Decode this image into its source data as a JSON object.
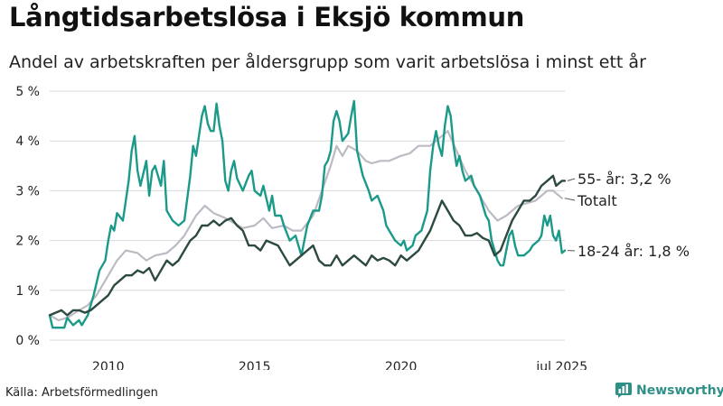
{
  "title": "Långtidsarbetslösa i Eksjö kommun",
  "subtitle": "Andel av arbetskraften per åldersgrupp som varit arbetslösa i minst ett år",
  "source": "Källa: Arbetsförmedlingen",
  "brand": {
    "name": "Newsworthy",
    "icon": "newsworthy-chart-icon"
  },
  "colors": {
    "youth": "#1b9a8a",
    "total": "#bdbac4",
    "senior": "#2d4a40",
    "grid": "#d9d9d9",
    "text": "#222222"
  },
  "chart_data": {
    "type": "line",
    "title": "",
    "xlabel": "",
    "ylabel": "",
    "x_range": [
      2008.0,
      2025.6
    ],
    "ylim": [
      0,
      5
    ],
    "y_ticks": [
      {
        "value": 0,
        "label": "0 %"
      },
      {
        "value": 1,
        "label": "1 %"
      },
      {
        "value": 2,
        "label": "2 %"
      },
      {
        "value": 3,
        "label": "3 %"
      },
      {
        "value": 4,
        "label": "4 %"
      },
      {
        "value": 5,
        "label": "5 %"
      }
    ],
    "x_ticks": [
      {
        "value": 2010,
        "label": "2010"
      },
      {
        "value": 2015,
        "label": "2015"
      },
      {
        "value": 2020,
        "label": "2020"
      },
      {
        "value": 2025.5,
        "label": "jul 2025"
      }
    ],
    "grid": true,
    "series": [
      {
        "key": "total",
        "name": "Totalt",
        "label": "Totalt",
        "points": [
          [
            2008.0,
            0.5
          ],
          [
            2008.3,
            0.4
          ],
          [
            2008.6,
            0.45
          ],
          [
            2009.0,
            0.6
          ],
          [
            2009.3,
            0.7
          ],
          [
            2009.6,
            0.9
          ],
          [
            2009.8,
            1.1
          ],
          [
            2010.0,
            1.3
          ],
          [
            2010.3,
            1.6
          ],
          [
            2010.6,
            1.8
          ],
          [
            2011.0,
            1.75
          ],
          [
            2011.3,
            1.6
          ],
          [
            2011.6,
            1.7
          ],
          [
            2012.0,
            1.75
          ],
          [
            2012.3,
            1.9
          ],
          [
            2012.6,
            2.1
          ],
          [
            2013.0,
            2.5
          ],
          [
            2013.3,
            2.7
          ],
          [
            2013.6,
            2.55
          ],
          [
            2014.0,
            2.45
          ],
          [
            2014.3,
            2.35
          ],
          [
            2014.6,
            2.25
          ],
          [
            2015.0,
            2.3
          ],
          [
            2015.3,
            2.45
          ],
          [
            2015.6,
            2.25
          ],
          [
            2016.0,
            2.3
          ],
          [
            2016.3,
            2.2
          ],
          [
            2016.6,
            2.2
          ],
          [
            2017.0,
            2.5
          ],
          [
            2017.3,
            3.0
          ],
          [
            2017.6,
            3.5
          ],
          [
            2017.8,
            3.9
          ],
          [
            2018.0,
            3.7
          ],
          [
            2018.2,
            3.9
          ],
          [
            2018.5,
            3.8
          ],
          [
            2018.8,
            3.6
          ],
          [
            2019.0,
            3.55
          ],
          [
            2019.3,
            3.6
          ],
          [
            2019.6,
            3.6
          ],
          [
            2020.0,
            3.7
          ],
          [
            2020.3,
            3.75
          ],
          [
            2020.6,
            3.9
          ],
          [
            2021.0,
            3.9
          ],
          [
            2021.3,
            4.05
          ],
          [
            2021.6,
            4.2
          ],
          [
            2021.9,
            3.8
          ],
          [
            2022.2,
            3.4
          ],
          [
            2022.5,
            3.1
          ],
          [
            2022.8,
            2.8
          ],
          [
            2023.0,
            2.6
          ],
          [
            2023.3,
            2.4
          ],
          [
            2023.6,
            2.5
          ],
          [
            2024.0,
            2.7
          ],
          [
            2024.3,
            2.75
          ],
          [
            2024.6,
            2.8
          ],
          [
            2025.0,
            3.0
          ],
          [
            2025.2,
            3.0
          ],
          [
            2025.5,
            2.85
          ]
        ]
      },
      {
        "key": "youth",
        "name": "18-24 år",
        "label": "18-24 år: 1,8 %",
        "points": [
          [
            2008.0,
            0.5
          ],
          [
            2008.1,
            0.25
          ],
          [
            2008.5,
            0.25
          ],
          [
            2008.6,
            0.45
          ],
          [
            2008.8,
            0.3
          ],
          [
            2009.0,
            0.4
          ],
          [
            2009.1,
            0.3
          ],
          [
            2009.3,
            0.5
          ],
          [
            2009.5,
            0.9
          ],
          [
            2009.7,
            1.4
          ],
          [
            2009.9,
            1.6
          ],
          [
            2010.0,
            2.0
          ],
          [
            2010.1,
            2.3
          ],
          [
            2010.2,
            2.2
          ],
          [
            2010.3,
            2.55
          ],
          [
            2010.5,
            2.4
          ],
          [
            2010.7,
            3.2
          ],
          [
            2010.8,
            3.8
          ],
          [
            2010.9,
            4.1
          ],
          [
            2011.0,
            3.4
          ],
          [
            2011.1,
            3.1
          ],
          [
            2011.3,
            3.6
          ],
          [
            2011.4,
            2.9
          ],
          [
            2011.5,
            3.4
          ],
          [
            2011.6,
            3.5
          ],
          [
            2011.8,
            3.1
          ],
          [
            2011.9,
            3.6
          ],
          [
            2012.0,
            2.6
          ],
          [
            2012.2,
            2.4
          ],
          [
            2012.4,
            2.3
          ],
          [
            2012.6,
            2.4
          ],
          [
            2012.8,
            3.3
          ],
          [
            2012.9,
            3.9
          ],
          [
            2013.0,
            3.7
          ],
          [
            2013.2,
            4.5
          ],
          [
            2013.3,
            4.7
          ],
          [
            2013.4,
            4.35
          ],
          [
            2013.5,
            4.2
          ],
          [
            2013.6,
            4.2
          ],
          [
            2013.7,
            4.75
          ],
          [
            2013.8,
            4.3
          ],
          [
            2013.9,
            4.0
          ],
          [
            2014.0,
            3.2
          ],
          [
            2014.1,
            3.0
          ],
          [
            2014.2,
            3.4
          ],
          [
            2014.3,
            3.6
          ],
          [
            2014.4,
            3.25
          ],
          [
            2014.6,
            3.0
          ],
          [
            2014.8,
            3.3
          ],
          [
            2014.9,
            3.4
          ],
          [
            2015.0,
            3.0
          ],
          [
            2015.2,
            2.9
          ],
          [
            2015.3,
            3.1
          ],
          [
            2015.5,
            2.6
          ],
          [
            2015.6,
            2.9
          ],
          [
            2015.7,
            2.5
          ],
          [
            2015.9,
            2.5
          ],
          [
            2016.0,
            2.3
          ],
          [
            2016.2,
            2.0
          ],
          [
            2016.4,
            2.1
          ],
          [
            2016.6,
            1.7
          ],
          [
            2016.8,
            2.3
          ],
          [
            2017.0,
            2.6
          ],
          [
            2017.2,
            2.6
          ],
          [
            2017.3,
            2.9
          ],
          [
            2017.4,
            3.5
          ],
          [
            2017.5,
            3.6
          ],
          [
            2017.6,
            3.8
          ],
          [
            2017.7,
            4.4
          ],
          [
            2017.8,
            4.6
          ],
          [
            2017.9,
            4.4
          ],
          [
            2018.0,
            4.0
          ],
          [
            2018.2,
            4.15
          ],
          [
            2018.3,
            4.5
          ],
          [
            2018.4,
            4.8
          ],
          [
            2018.5,
            3.8
          ],
          [
            2018.7,
            3.3
          ],
          [
            2018.9,
            3.0
          ],
          [
            2019.0,
            2.8
          ],
          [
            2019.2,
            2.9
          ],
          [
            2019.4,
            2.6
          ],
          [
            2019.5,
            2.3
          ],
          [
            2019.6,
            2.2
          ],
          [
            2019.8,
            2.0
          ],
          [
            2020.0,
            1.9
          ],
          [
            2020.1,
            2.0
          ],
          [
            2020.2,
            1.8
          ],
          [
            2020.4,
            1.9
          ],
          [
            2020.5,
            2.1
          ],
          [
            2020.7,
            2.2
          ],
          [
            2020.9,
            2.6
          ],
          [
            2021.0,
            3.4
          ],
          [
            2021.1,
            3.9
          ],
          [
            2021.2,
            4.2
          ],
          [
            2021.3,
            3.9
          ],
          [
            2021.4,
            3.7
          ],
          [
            2021.5,
            4.3
          ],
          [
            2021.6,
            4.7
          ],
          [
            2021.7,
            4.5
          ],
          [
            2021.8,
            3.9
          ],
          [
            2021.9,
            3.5
          ],
          [
            2022.0,
            3.7
          ],
          [
            2022.1,
            3.4
          ],
          [
            2022.2,
            3.2
          ],
          [
            2022.4,
            3.3
          ],
          [
            2022.5,
            3.1
          ],
          [
            2022.7,
            2.9
          ],
          [
            2022.8,
            2.7
          ],
          [
            2022.9,
            2.5
          ],
          [
            2023.0,
            2.4
          ],
          [
            2023.1,
            2.0
          ],
          [
            2023.2,
            1.8
          ],
          [
            2023.3,
            1.6
          ],
          [
            2023.4,
            1.5
          ],
          [
            2023.5,
            1.5
          ],
          [
            2023.6,
            1.8
          ],
          [
            2023.7,
            2.1
          ],
          [
            2023.8,
            2.2
          ],
          [
            2023.9,
            1.9
          ],
          [
            2024.0,
            1.7
          ],
          [
            2024.2,
            1.7
          ],
          [
            2024.4,
            1.8
          ],
          [
            2024.5,
            1.9
          ],
          [
            2024.7,
            2.0
          ],
          [
            2024.8,
            2.1
          ],
          [
            2024.9,
            2.5
          ],
          [
            2025.0,
            2.3
          ],
          [
            2025.1,
            2.5
          ],
          [
            2025.2,
            2.1
          ],
          [
            2025.3,
            2.0
          ],
          [
            2025.4,
            2.2
          ],
          [
            2025.5,
            1.75
          ],
          [
            2025.6,
            1.8
          ]
        ]
      },
      {
        "key": "senior",
        "name": "55- år",
        "label": "55- år: 3,2 %",
        "points": [
          [
            2008.0,
            0.5
          ],
          [
            2008.2,
            0.55
          ],
          [
            2008.4,
            0.6
          ],
          [
            2008.6,
            0.5
          ],
          [
            2008.8,
            0.6
          ],
          [
            2009.0,
            0.6
          ],
          [
            2009.2,
            0.55
          ],
          [
            2009.4,
            0.6
          ],
          [
            2009.6,
            0.7
          ],
          [
            2009.8,
            0.8
          ],
          [
            2010.0,
            0.9
          ],
          [
            2010.2,
            1.1
          ],
          [
            2010.4,
            1.2
          ],
          [
            2010.6,
            1.3
          ],
          [
            2010.8,
            1.3
          ],
          [
            2011.0,
            1.4
          ],
          [
            2011.2,
            1.35
          ],
          [
            2011.4,
            1.45
          ],
          [
            2011.6,
            1.2
          ],
          [
            2011.8,
            1.4
          ],
          [
            2012.0,
            1.6
          ],
          [
            2012.2,
            1.5
          ],
          [
            2012.4,
            1.6
          ],
          [
            2012.6,
            1.8
          ],
          [
            2012.8,
            2.0
          ],
          [
            2013.0,
            2.1
          ],
          [
            2013.2,
            2.3
          ],
          [
            2013.4,
            2.3
          ],
          [
            2013.6,
            2.4
          ],
          [
            2013.8,
            2.3
          ],
          [
            2014.0,
            2.4
          ],
          [
            2014.2,
            2.45
          ],
          [
            2014.4,
            2.3
          ],
          [
            2014.6,
            2.2
          ],
          [
            2014.8,
            1.9
          ],
          [
            2015.0,
            1.9
          ],
          [
            2015.2,
            1.8
          ],
          [
            2015.4,
            2.0
          ],
          [
            2015.6,
            1.95
          ],
          [
            2015.8,
            1.9
          ],
          [
            2016.0,
            1.7
          ],
          [
            2016.2,
            1.5
          ],
          [
            2016.4,
            1.6
          ],
          [
            2016.6,
            1.7
          ],
          [
            2016.8,
            1.8
          ],
          [
            2017.0,
            1.9
          ],
          [
            2017.2,
            1.6
          ],
          [
            2017.4,
            1.5
          ],
          [
            2017.6,
            1.5
          ],
          [
            2017.8,
            1.7
          ],
          [
            2018.0,
            1.5
          ],
          [
            2018.2,
            1.6
          ],
          [
            2018.4,
            1.7
          ],
          [
            2018.6,
            1.6
          ],
          [
            2018.8,
            1.5
          ],
          [
            2019.0,
            1.7
          ],
          [
            2019.2,
            1.6
          ],
          [
            2019.4,
            1.65
          ],
          [
            2019.6,
            1.6
          ],
          [
            2019.8,
            1.5
          ],
          [
            2020.0,
            1.7
          ],
          [
            2020.2,
            1.6
          ],
          [
            2020.4,
            1.7
          ],
          [
            2020.6,
            1.8
          ],
          [
            2020.8,
            2.0
          ],
          [
            2021.0,
            2.2
          ],
          [
            2021.2,
            2.5
          ],
          [
            2021.4,
            2.8
          ],
          [
            2021.6,
            2.6
          ],
          [
            2021.8,
            2.4
          ],
          [
            2022.0,
            2.3
          ],
          [
            2022.2,
            2.1
          ],
          [
            2022.4,
            2.1
          ],
          [
            2022.6,
            2.15
          ],
          [
            2022.8,
            2.05
          ],
          [
            2023.0,
            2.0
          ],
          [
            2023.2,
            1.7
          ],
          [
            2023.4,
            1.8
          ],
          [
            2023.6,
            2.1
          ],
          [
            2023.8,
            2.4
          ],
          [
            2024.0,
            2.6
          ],
          [
            2024.2,
            2.8
          ],
          [
            2024.4,
            2.8
          ],
          [
            2024.6,
            2.9
          ],
          [
            2024.8,
            3.1
          ],
          [
            2025.0,
            3.2
          ],
          [
            2025.2,
            3.3
          ],
          [
            2025.3,
            3.1
          ],
          [
            2025.5,
            3.2
          ],
          [
            2025.6,
            3.2
          ]
        ]
      }
    ]
  }
}
